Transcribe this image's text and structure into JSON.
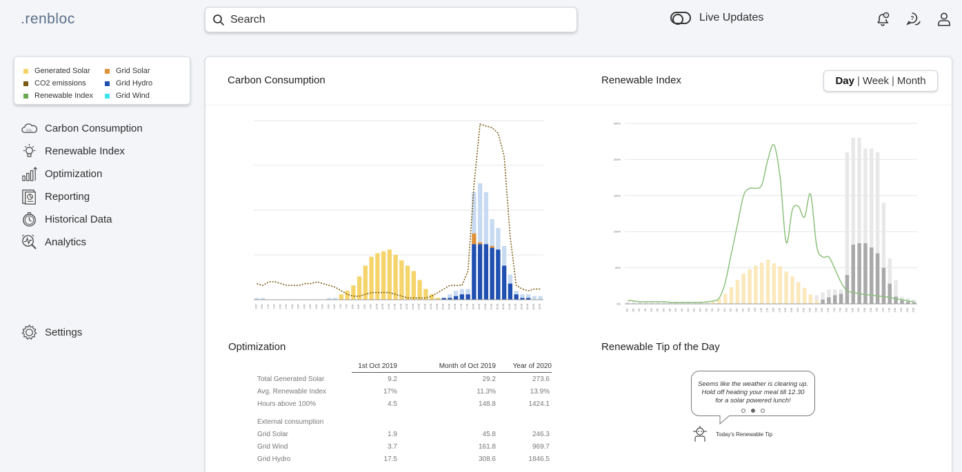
{
  "app": {
    "logo": ".renbloc"
  },
  "search": {
    "placeholder": "Search"
  },
  "live_updates": {
    "label": "Live Updates"
  },
  "legend": {
    "items": [
      {
        "label": "Generated Solar",
        "color": "#f5d46b"
      },
      {
        "label": "Grid Solar",
        "color": "#e0913a"
      },
      {
        "label": "CO2 emissions",
        "color": "#7a5a10"
      },
      {
        "label": "Grid Hydro",
        "color": "#1f4fb0"
      },
      {
        "label": "Renewable Index",
        "color": "#6aa84f"
      },
      {
        "label": "Grid Wind",
        "color": "#3fe3ec"
      }
    ]
  },
  "nav": {
    "items": [
      {
        "label": "Carbon Consumption",
        "icon": "co2-cloud-icon"
      },
      {
        "label": "Renewable Index",
        "icon": "lightbulb-icon"
      },
      {
        "label": "Optimization",
        "icon": "bar-chart-up-icon"
      },
      {
        "label": "Reporting",
        "icon": "report-icon"
      },
      {
        "label": "Historical Data",
        "icon": "clock-icon"
      },
      {
        "label": "Analytics",
        "icon": "analytics-icon"
      }
    ],
    "settings": "Settings"
  },
  "sections": {
    "carbon": "Carbon Consumption",
    "renewable": "Renewable Index",
    "optimization": "Optimization",
    "tip": "Renewable Tip of the Day"
  },
  "period_toggle": {
    "day": "Day",
    "week": "Week",
    "month": "Month",
    "selected": "Day"
  },
  "optimization": {
    "columns": [
      "1st Oct 2019",
      "Month of Oct 2019",
      "Year of 2020"
    ],
    "rows": [
      {
        "label": "Total Generated Solar",
        "v1": "9.2",
        "v2": "29.2",
        "v3": "273.6"
      },
      {
        "label": "Avg. Renewable Index",
        "v1": "17%",
        "v2": "11.3%",
        "v3": "13.9%"
      },
      {
        "label": "Hours above 100%",
        "v1": "4.5",
        "v2": "148.8",
        "v3": "1424.1"
      }
    ],
    "external_label": "External consumption",
    "external_rows": [
      {
        "label": "Grid Solar",
        "v1": "1.9",
        "v2": "45.8",
        "v3": "246.3"
      },
      {
        "label": "Grid Wind",
        "v1": "3.7",
        "v2": "161.8",
        "v3": "969.7"
      },
      {
        "label": "Grid Hydro",
        "v1": "17.5",
        "v2": "308.6",
        "v3": "1846.5"
      }
    ]
  },
  "tip": {
    "text": "Seems like the weather is clearing up. Hold off heating your meal till 12.30 for a solar powered lunch!",
    "caption": "Today's Renewable Tip"
  },
  "chart_data": [
    {
      "type": "bar",
      "title": "Carbon Consumption",
      "x": [
        "0:00",
        "0:30",
        "1:00",
        "1:30",
        "2:00",
        "2:30",
        "3:00",
        "3:30",
        "4:00",
        "4:30",
        "5:00",
        "5:30",
        "6:00",
        "6:30",
        "7:00",
        "7:30",
        "8:00",
        "8:30",
        "9:00",
        "9:30",
        "10:00",
        "10:30",
        "11:00",
        "11:30",
        "12:00",
        "12:30",
        "13:00",
        "13:30",
        "14:00",
        "14:30",
        "15:00",
        "15:30",
        "16:00",
        "16:30",
        "17:00",
        "17:30",
        "18:00",
        "18:30",
        "19:00",
        "19:30",
        "20:00",
        "20:30",
        "21:00",
        "21:30",
        "22:00",
        "22:30",
        "23:00",
        "23:30"
      ],
      "series": [
        {
          "name": "Generated Solar",
          "values": [
            0,
            0,
            0,
            0,
            0,
            0,
            0,
            0,
            0,
            0,
            0,
            0,
            0,
            0,
            0.03,
            0.05,
            0.08,
            0.13,
            0.19,
            0.24,
            0.26,
            0.27,
            0.28,
            0.25,
            0.22,
            0.19,
            0.16,
            0.11,
            0.06,
            0.03,
            0.01,
            0,
            0,
            0,
            0,
            0,
            0,
            0,
            0,
            0,
            0,
            0,
            0,
            0,
            0,
            0,
            0,
            0
          ]
        },
        {
          "name": "Grid Solar",
          "values": [
            0,
            0,
            0,
            0,
            0,
            0,
            0,
            0,
            0,
            0,
            0,
            0,
            0,
            0,
            0,
            0,
            0,
            0,
            0,
            0,
            0,
            0,
            0,
            0,
            0,
            0,
            0,
            0,
            0,
            0,
            0,
            0,
            0,
            0,
            0,
            0,
            0.06,
            0.01,
            0,
            0.01,
            0,
            0,
            0,
            0,
            0,
            0,
            0,
            0
          ]
        },
        {
          "name": "Grid Hydro",
          "values": [
            0,
            0,
            0,
            0,
            0,
            0,
            0,
            0,
            0,
            0,
            0,
            0,
            0,
            0,
            0,
            0,
            0,
            0,
            0,
            0,
            0,
            0,
            0,
            0,
            0,
            0,
            0,
            0,
            0,
            0,
            0.01,
            0.01,
            0.01,
            0.02,
            0.03,
            0.03,
            0.31,
            0.31,
            0.31,
            0.29,
            0.28,
            0.19,
            0.09,
            0.03,
            0.01,
            0.01,
            0,
            0
          ]
        },
        {
          "name": "Grid Wind",
          "values": [
            0.01,
            0.01,
            0,
            0,
            0,
            0,
            0,
            0,
            0,
            0,
            0,
            0,
            0.01,
            0.01,
            0,
            0,
            0.01,
            0,
            0,
            0,
            0,
            0,
            0,
            0,
            0,
            0,
            0,
            0,
            0,
            0.01,
            0.01,
            0.01,
            0.03,
            0.05,
            0.06,
            0.06,
            0.6,
            0.65,
            0.6,
            0.45,
            0.4,
            0.3,
            0.14,
            0.05,
            0.03,
            0.03,
            0.02,
            0.02
          ]
        },
        {
          "name": "CO2 emissions",
          "values": [
            0.09,
            0.08,
            0.1,
            0.1,
            0.09,
            0.08,
            0.08,
            0.08,
            0.09,
            0.09,
            0.1,
            0.09,
            0.08,
            0.07,
            0.05,
            0.03,
            0.02,
            0.02,
            0.03,
            0.04,
            0.04,
            0.04,
            0.04,
            0.03,
            0.02,
            0.01,
            0.01,
            0.01,
            0.01,
            0.02,
            0.04,
            0.06,
            0.08,
            0.08,
            0.08,
            0.16,
            0.64,
            0.98,
            0.97,
            0.96,
            0.93,
            0.8,
            0.35,
            0.08,
            0.06,
            0.05,
            0.06,
            0.06
          ]
        }
      ],
      "ylim": [
        0,
        1
      ]
    },
    {
      "type": "bar",
      "title": "Renewable Index",
      "x": [
        "0:00",
        "0:30",
        "1:00",
        "1:30",
        "2:00",
        "2:30",
        "3:00",
        "3:30",
        "4:00",
        "4:30",
        "5:00",
        "5:30",
        "6:00",
        "6:30",
        "7:00",
        "7:30",
        "8:00",
        "8:30",
        "9:00",
        "9:30",
        "10:00",
        "10:30",
        "11:00",
        "11:30",
        "12:00",
        "12:30",
        "13:00",
        "13:30",
        "14:00",
        "14:30",
        "15:00",
        "15:30",
        "16:00",
        "16:30",
        "17:00",
        "17:30",
        "18:00",
        "18:30",
        "19:00",
        "19:30",
        "20:00",
        "20:30",
        "21:00",
        "21:30",
        "22:00",
        "22:30",
        "23:00",
        "23:30"
      ],
      "y_ticks": [
        "0%",
        "50%",
        "100%",
        "150%",
        "200%",
        "250%"
      ],
      "series": [
        {
          "name": "Generated Solar",
          "values": [
            0,
            0,
            0,
            0,
            0,
            0,
            0,
            0,
            0,
            0,
            0,
            0,
            0,
            0,
            3,
            7,
            14,
            23,
            33,
            42,
            48,
            53,
            57,
            61,
            56,
            52,
            45,
            38,
            30,
            22,
            13,
            5,
            0,
            0,
            0,
            0,
            0,
            0,
            0,
            0,
            0,
            0,
            0,
            0,
            0,
            0,
            0,
            0
          ]
        },
        {
          "name": "Grid Hydro",
          "values": [
            0,
            0,
            0,
            0,
            0,
            0,
            0,
            0,
            0,
            0,
            0,
            0,
            0,
            0,
            0,
            0,
            0,
            0,
            0,
            0,
            0,
            0,
            0,
            0,
            0,
            0,
            0,
            0,
            0,
            0,
            2,
            4,
            6,
            9,
            12,
            14,
            40,
            82,
            84,
            84,
            78,
            70,
            50,
            28,
            10,
            5,
            3,
            2
          ]
        },
        {
          "name": "Grid Wind",
          "values": [
            3,
            3,
            3,
            3,
            3,
            3,
            3,
            3,
            3,
            3,
            3,
            3,
            3,
            3,
            3,
            3,
            3,
            3,
            3,
            3,
            3,
            3,
            3,
            3,
            3,
            3,
            3,
            3,
            3,
            3,
            8,
            12,
            16,
            20,
            20,
            20,
            210,
            230,
            230,
            215,
            215,
            210,
            140,
            63,
            33,
            10,
            8,
            6
          ]
        },
        {
          "name": "Renewable Index",
          "values": [
            5,
            4,
            3,
            3,
            3,
            3,
            3,
            2,
            2,
            2,
            2,
            2,
            2,
            3,
            4,
            8,
            30,
            70,
            110,
            150,
            160,
            160,
            165,
            200,
            220,
            175,
            85,
            130,
            135,
            120,
            152,
            80,
            65,
            65,
            48,
            30,
            18,
            16,
            14,
            13,
            12,
            11,
            10,
            9,
            7,
            6,
            4,
            3
          ]
        }
      ],
      "ylim": [
        0,
        250
      ]
    }
  ]
}
